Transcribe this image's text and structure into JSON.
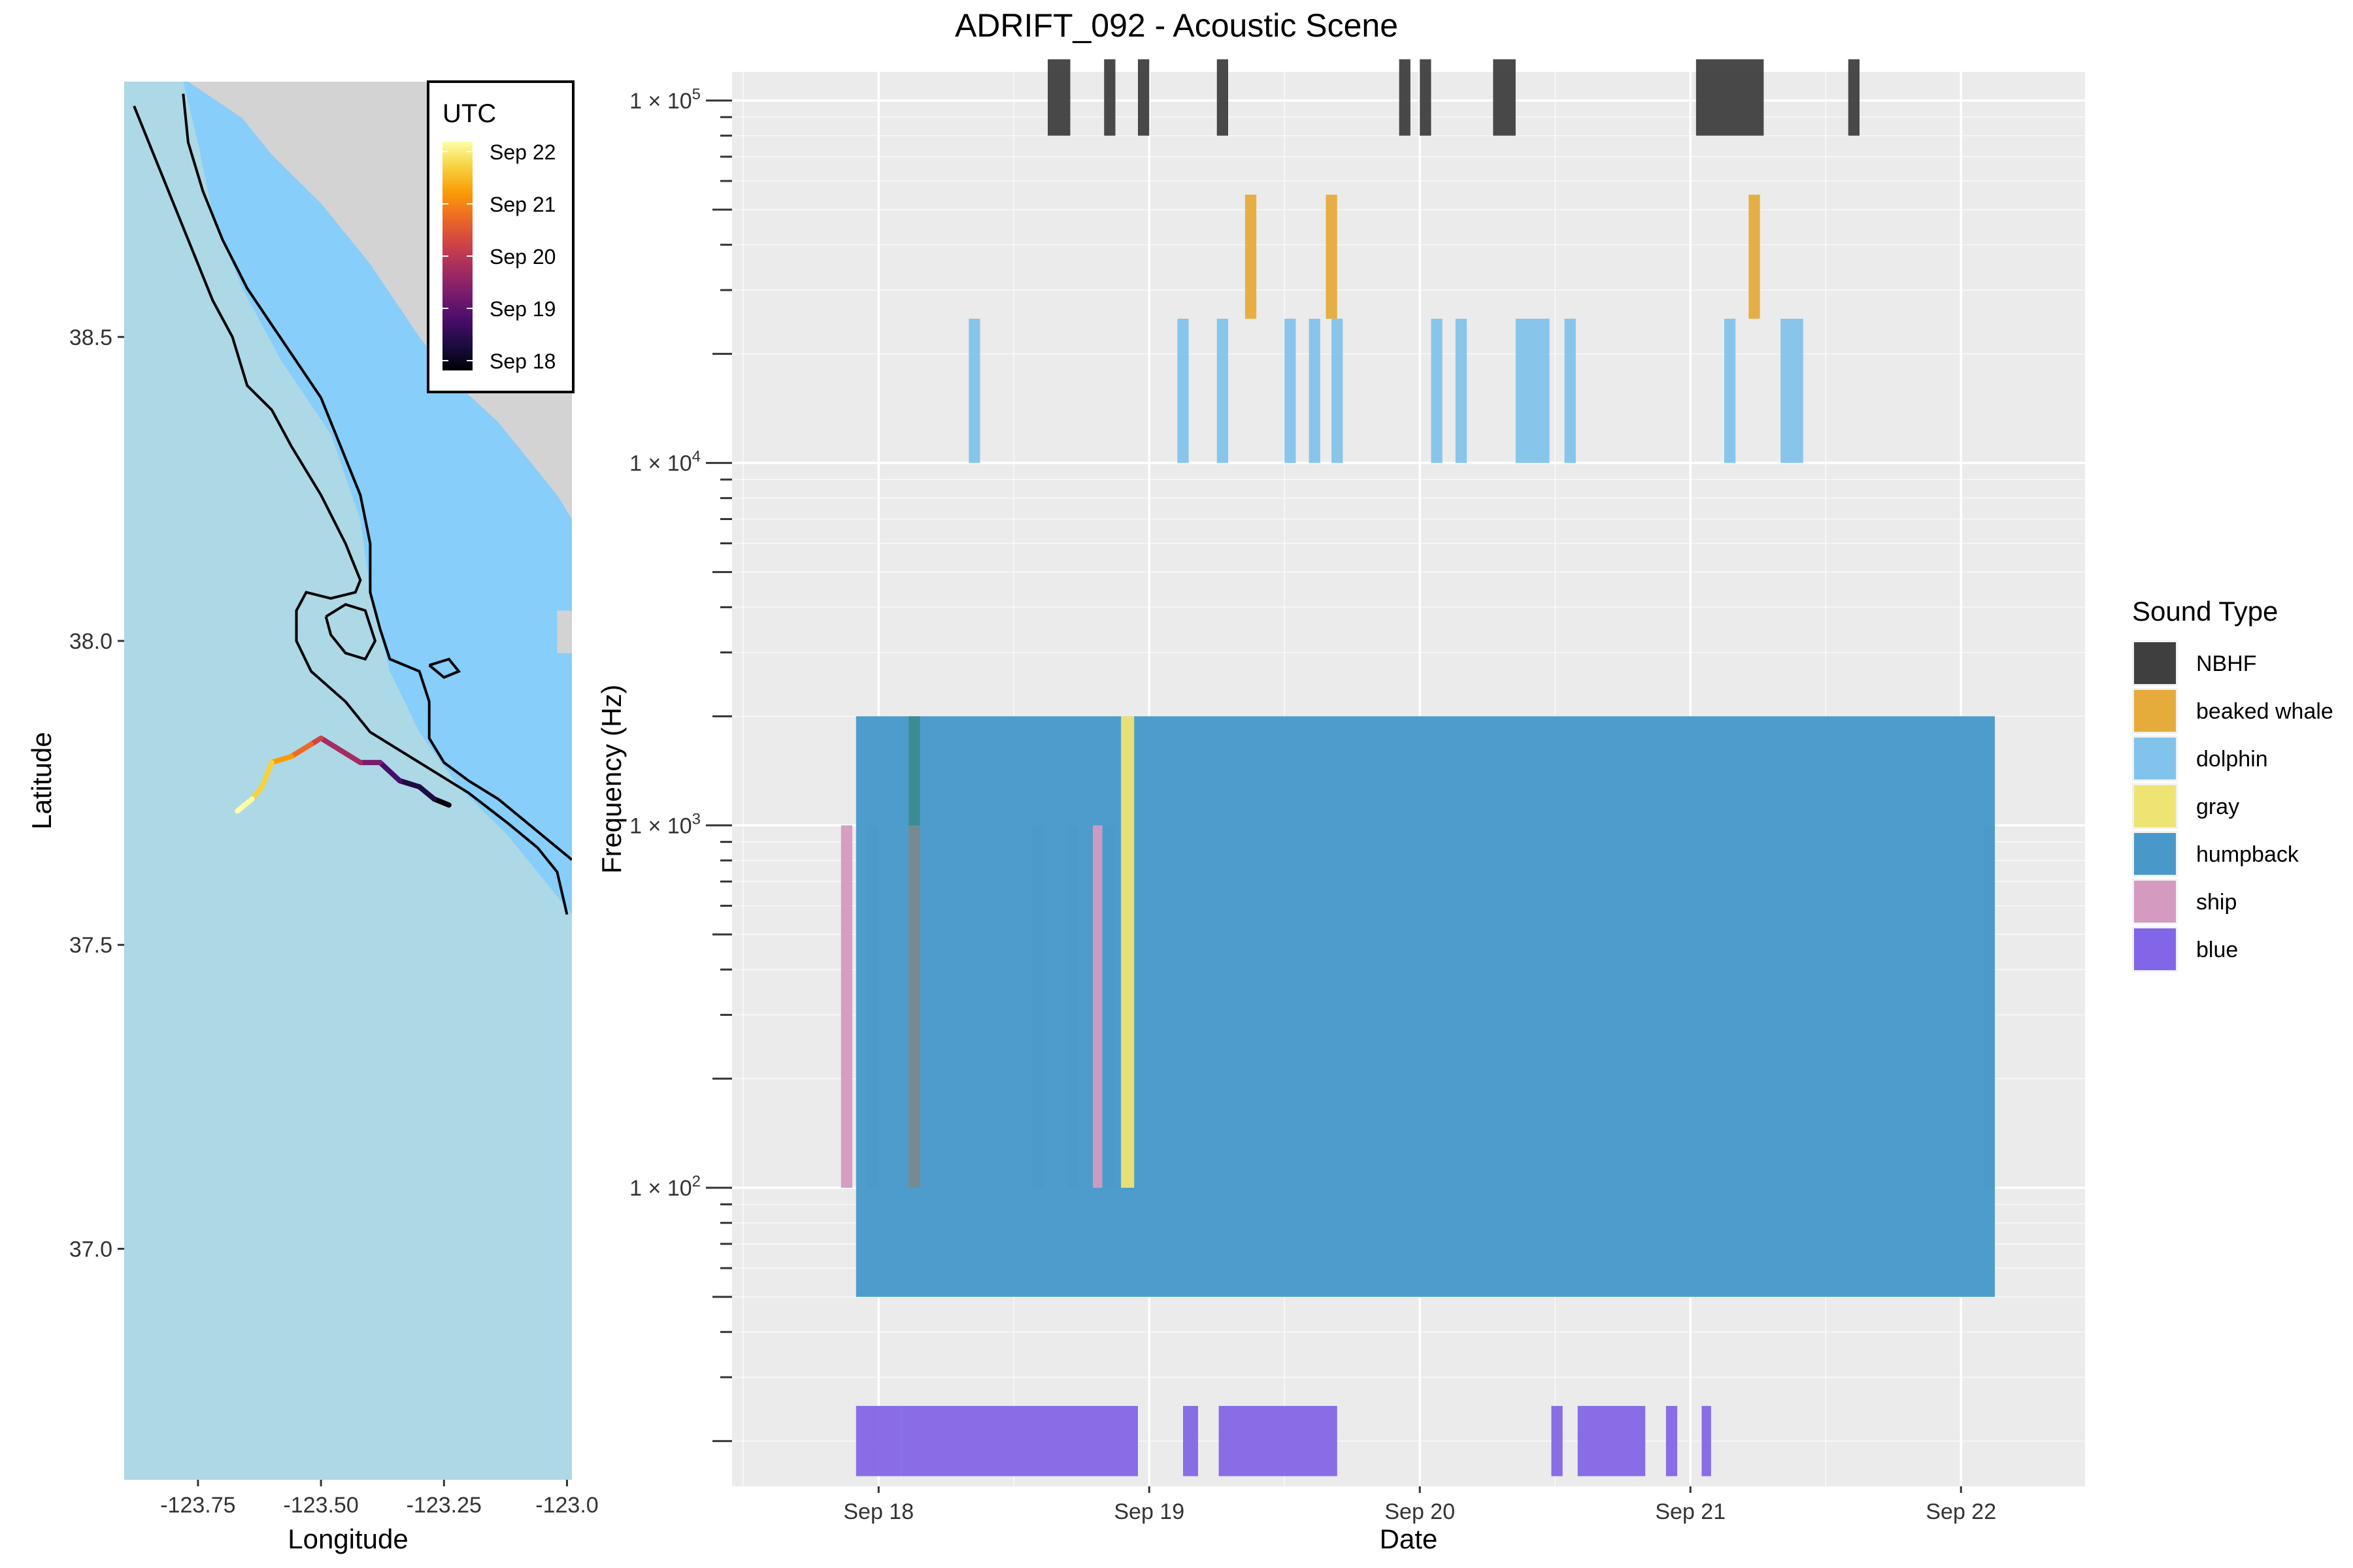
{
  "title": "ADRIFT_092 - Acoustic Scene",
  "colors": {
    "ocean_shelf": "#87CEFA",
    "ocean_deep": "#ADD8E6",
    "land": "#D3D3D3",
    "panel_bg": "#EBEBEB",
    "grid": "#FFFFFF",
    "contour": "#000000"
  },
  "chart_data": [
    {
      "type": "map",
      "name": "track-map",
      "xlabel": "Longitude",
      "ylabel": "Latitude",
      "xlim": [
        -123.9,
        -122.99
      ],
      "ylim": [
        36.62,
        38.92
      ],
      "x_ticks": [
        -123.75,
        -123.5,
        -123.25,
        -123.0
      ],
      "x_tick_labels": [
        "-123.75",
        "-123.50",
        "-123.25",
        "-123.0"
      ],
      "y_ticks": [
        37.0,
        37.5,
        38.0,
        38.5
      ],
      "y_tick_labels": [
        "37.0",
        "37.5",
        "38.0",
        "38.5"
      ],
      "legend": {
        "title": "UTC",
        "labels": [
          "Sep 22",
          "Sep 21",
          "Sep 20",
          "Sep 19",
          "Sep 18"
        ],
        "gradient": [
          "#FCFFA4",
          "#F7D13D",
          "#FB9B06",
          "#ED6925",
          "#CF4446",
          "#A52C60",
          "#781C6D",
          "#4A0C6B",
          "#1B0C41",
          "#000004"
        ]
      },
      "land_polygon": [
        [
          -123.77,
          38.92
        ],
        [
          -123.66,
          38.86
        ],
        [
          -123.6,
          38.8
        ],
        [
          -123.5,
          38.72
        ],
        [
          -123.4,
          38.62
        ],
        [
          -123.3,
          38.5
        ],
        [
          -123.22,
          38.42
        ],
        [
          -123.14,
          38.36
        ],
        [
          -123.08,
          38.3
        ],
        [
          -123.02,
          38.24
        ],
        [
          -122.99,
          38.2
        ],
        [
          -122.99,
          38.92
        ]
      ],
      "land_patches": [
        [
          [
            -123.02,
            38.05
          ],
          [
            -122.99,
            38.05
          ],
          [
            -122.99,
            37.98
          ],
          [
            -123.02,
            37.98
          ]
        ]
      ],
      "deep_polygon": [
        [
          -123.9,
          38.92
        ],
        [
          -123.78,
          38.92
        ],
        [
          -123.75,
          38.82
        ],
        [
          -123.72,
          38.7
        ],
        [
          -123.66,
          38.58
        ],
        [
          -123.58,
          38.46
        ],
        [
          -123.48,
          38.34
        ],
        [
          -123.42,
          38.2
        ],
        [
          -123.4,
          38.08
        ],
        [
          -123.36,
          37.95
        ],
        [
          -123.3,
          37.85
        ],
        [
          -123.22,
          37.76
        ],
        [
          -123.12,
          37.68
        ],
        [
          -123.04,
          37.6
        ],
        [
          -122.99,
          37.55
        ],
        [
          -122.99,
          36.62
        ],
        [
          -123.9,
          36.62
        ]
      ],
      "contours": [
        [
          [
            -123.88,
            38.88
          ],
          [
            -123.84,
            38.8
          ],
          [
            -123.8,
            38.72
          ],
          [
            -123.76,
            38.64
          ],
          [
            -123.72,
            38.56
          ],
          [
            -123.68,
            38.5
          ],
          [
            -123.65,
            38.42
          ],
          [
            -123.6,
            38.38
          ],
          [
            -123.56,
            38.32
          ],
          [
            -123.5,
            38.24
          ],
          [
            -123.45,
            38.16
          ],
          [
            -123.42,
            38.1
          ],
          [
            -123.43,
            38.08
          ],
          [
            -123.48,
            38.07
          ],
          [
            -123.53,
            38.08
          ],
          [
            -123.55,
            38.05
          ],
          [
            -123.55,
            38.0
          ],
          [
            -123.52,
            37.95
          ],
          [
            -123.45,
            37.9
          ],
          [
            -123.4,
            37.85
          ],
          [
            -123.3,
            37.8
          ],
          [
            -123.2,
            37.75
          ],
          [
            -123.12,
            37.7
          ],
          [
            -123.06,
            37.66
          ],
          [
            -123.02,
            37.62
          ],
          [
            -123.0,
            37.55
          ]
        ],
        [
          [
            -123.78,
            38.9
          ],
          [
            -123.77,
            38.82
          ],
          [
            -123.74,
            38.74
          ],
          [
            -123.7,
            38.66
          ],
          [
            -123.65,
            38.58
          ],
          [
            -123.6,
            38.52
          ],
          [
            -123.55,
            38.46
          ],
          [
            -123.5,
            38.4
          ],
          [
            -123.46,
            38.32
          ],
          [
            -123.42,
            38.24
          ],
          [
            -123.4,
            38.16
          ],
          [
            -123.4,
            38.08
          ],
          [
            -123.38,
            38.02
          ],
          [
            -123.36,
            37.97
          ],
          [
            -123.3,
            37.95
          ],
          [
            -123.28,
            37.9
          ],
          [
            -123.28,
            37.84
          ],
          [
            -123.25,
            37.8
          ],
          [
            -123.2,
            37.77
          ],
          [
            -123.14,
            37.74
          ],
          [
            -123.08,
            37.7
          ],
          [
            -123.02,
            37.66
          ],
          [
            -122.99,
            37.64
          ]
        ],
        [
          [
            -123.49,
            38.04
          ],
          [
            -123.45,
            38.06
          ],
          [
            -123.41,
            38.05
          ],
          [
            -123.39,
            38.0
          ],
          [
            -123.41,
            37.97
          ],
          [
            -123.45,
            37.98
          ],
          [
            -123.48,
            38.01
          ],
          [
            -123.49,
            38.04
          ]
        ],
        [
          [
            -123.28,
            37.96
          ],
          [
            -123.24,
            37.97
          ],
          [
            -123.22,
            37.95
          ],
          [
            -123.25,
            37.94
          ],
          [
            -123.28,
            37.96
          ]
        ]
      ],
      "track": [
        [
          -123.67,
          37.72
        ],
        [
          -123.64,
          37.74
        ],
        [
          -123.62,
          37.76
        ],
        [
          -123.6,
          37.8
        ],
        [
          -123.56,
          37.81
        ],
        [
          -123.52,
          37.83
        ],
        [
          -123.5,
          37.84
        ],
        [
          -123.46,
          37.82
        ],
        [
          -123.42,
          37.8
        ],
        [
          -123.38,
          37.8
        ],
        [
          -123.34,
          37.77
        ],
        [
          -123.3,
          37.76
        ],
        [
          -123.27,
          37.74
        ],
        [
          -123.24,
          37.73
        ]
      ]
    },
    {
      "type": "timeline",
      "name": "acoustic-scene",
      "xlabel": "Date",
      "ylabel": "Frequency (Hz)",
      "y_scale": "log10",
      "xlim": [
        "Sep 17 11:00",
        "Sep 22 11:00"
      ],
      "ylim": [
        15,
        120000
      ],
      "x_ticks": [
        "Sep 18",
        "Sep 19",
        "Sep 20",
        "Sep 21",
        "Sep 22"
      ],
      "y_ticks": [
        100,
        1000,
        10000,
        100000
      ],
      "y_tick_label_base": "1 × 10",
      "y_tick_label_exponents": [
        "2",
        "3",
        "4",
        "5"
      ],
      "legend": {
        "title": "Sound Type",
        "position": "right",
        "entries": [
          {
            "name": "NBHF",
            "color": "#3F3F3F"
          },
          {
            "name": "beaked whale",
            "color": "#E5AC3C"
          },
          {
            "name": "dolphin",
            "color": "#82C3EB"
          },
          {
            "name": "gray",
            "color": "#EEE473"
          },
          {
            "name": "humpback",
            "color": "#4899C9"
          },
          {
            "name": "ship",
            "color": "#D49AC0"
          },
          {
            "name": "blue",
            "color": "#8366E7"
          }
        ]
      },
      "series": [
        {
          "name": "ship",
          "freq": [
            100,
            1000
          ],
          "events": [
            [
              "Sep 17 20:40",
              "Sep 17 21:40"
            ],
            [
              "Sep 17 23:00",
              "Sep 18 00:00"
            ],
            [
              "Sep 18 13:40",
              "Sep 18 14:40"
            ],
            [
              "Sep 18 16:50",
              "Sep 18 17:40"
            ],
            [
              "Sep 18 20:00",
              "Sep 18 21:00"
            ],
            [
              "Sep 22 02:00",
              "Sep 22 03:00"
            ]
          ]
        },
        {
          "name": "humpback",
          "freq": [
            50,
            2000
          ],
          "events": [
            [
              "Sep 17 22:00",
              "Sep 22 03:00"
            ]
          ]
        },
        {
          "name": "ship",
          "freq": [
            100,
            1000
          ],
          "events": [
            [
              "Sep 18 02:40",
              "Sep 18 03:40"
            ],
            [
              "Sep 18 19:00",
              "Sep 18 19:50"
            ]
          ]
        },
        {
          "name": "gray",
          "freq": [
            100,
            2000
          ],
          "events": [
            [
              "Sep 18 21:30",
              "Sep 18 22:40"
            ]
          ]
        },
        {
          "name": "blue",
          "freq": [
            16,
            25
          ],
          "events": [
            [
              "Sep 17 22:00",
              "Sep 18 02:00"
            ],
            [
              "Sep 18 02:00",
              "Sep 18 23:00"
            ],
            [
              "Sep 19 03:00",
              "Sep 19 04:20"
            ],
            [
              "Sep 19 06:10",
              "Sep 19 16:40"
            ],
            [
              "Sep 20 11:40",
              "Sep 20 12:40"
            ],
            [
              "Sep 20 14:00",
              "Sep 20 20:00"
            ],
            [
              "Sep 20 21:50",
              "Sep 20 22:50"
            ],
            [
              "Sep 21 01:00",
              "Sep 21 01:50"
            ]
          ]
        },
        {
          "name": "dolphin",
          "freq": [
            10000,
            25000
          ],
          "events": [
            [
              "Sep 18 08:00",
              "Sep 18 09:00"
            ],
            [
              "Sep 19 02:30",
              "Sep 19 03:30"
            ],
            [
              "Sep 19 06:00",
              "Sep 19 07:00"
            ],
            [
              "Sep 19 12:00",
              "Sep 19 13:00"
            ],
            [
              "Sep 19 14:10",
              "Sep 19 15:10"
            ],
            [
              "Sep 19 16:10",
              "Sep 19 17:10"
            ],
            [
              "Sep 20 01:00",
              "Sep 20 02:00"
            ],
            [
              "Sep 20 03:10",
              "Sep 20 04:10"
            ],
            [
              "Sep 20 08:30",
              "Sep 20 11:30"
            ],
            [
              "Sep 20 12:50",
              "Sep 20 13:50"
            ],
            [
              "Sep 21 03:00",
              "Sep 21 04:00"
            ],
            [
              "Sep 21 08:00",
              "Sep 21 10:00"
            ]
          ]
        },
        {
          "name": "beaked whale",
          "freq": [
            25000,
            55000
          ],
          "events": [
            [
              "Sep 19 08:30",
              "Sep 19 09:30"
            ],
            [
              "Sep 19 15:40",
              "Sep 19 16:40"
            ],
            [
              "Sep 21 05:10",
              "Sep 21 06:10"
            ]
          ]
        },
        {
          "name": "NBHF",
          "freq": [
            80000,
            130000
          ],
          "events": [
            [
              "Sep 18 15:00",
              "Sep 18 17:00"
            ],
            [
              "Sep 18 20:00",
              "Sep 18 21:00"
            ],
            [
              "Sep 18 23:00",
              "Sep 19 00:00"
            ],
            [
              "Sep 19 06:00",
              "Sep 19 07:00"
            ],
            [
              "Sep 19 22:10",
              "Sep 19 23:10"
            ],
            [
              "Sep 20 00:00",
              "Sep 20 01:00"
            ],
            [
              "Sep 20 06:30",
              "Sep 20 08:30"
            ],
            [
              "Sep 21 00:30",
              "Sep 21 06:30"
            ],
            [
              "Sep 21 14:00",
              "Sep 21 15:00"
            ]
          ]
        }
      ],
      "overlays": [
        {
          "name": "ship",
          "freq": [
            100,
            2000
          ],
          "color": "#2E7D6A",
          "events": [
            [
              "Sep 18 02:40",
              "Sep 18 03:40"
            ]
          ]
        }
      ]
    }
  ]
}
